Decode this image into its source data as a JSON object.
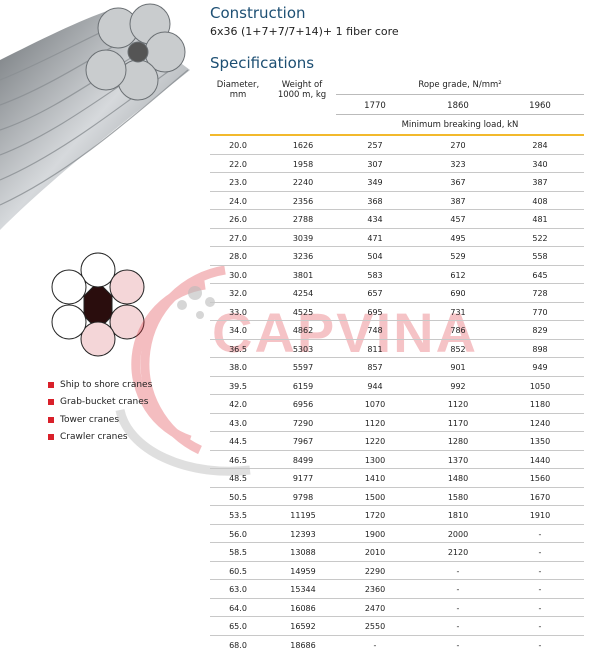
{
  "construction": {
    "title": "Construction",
    "text": "6x36 (1+7+7/7+14)+ 1 fiber core"
  },
  "specifications": {
    "title": "Specifications"
  },
  "table": {
    "headers": {
      "diameter": "Diameter, mm",
      "weight": "Weight of 1000 m, kg",
      "rope_grade": "Rope grade, N/mm²",
      "grades": [
        "1770",
        "1860",
        "1960"
      ],
      "min_breaking": "Minimum breaking load, kN"
    },
    "rows": [
      [
        "20.0",
        "1626",
        "257",
        "270",
        "284"
      ],
      [
        "22.0",
        "1958",
        "307",
        "323",
        "340"
      ],
      [
        "23.0",
        "2240",
        "349",
        "367",
        "387"
      ],
      [
        "24.0",
        "2356",
        "368",
        "387",
        "408"
      ],
      [
        "26.0",
        "2788",
        "434",
        "457",
        "481"
      ],
      [
        "27.0",
        "3039",
        "471",
        "495",
        "522"
      ],
      [
        "28.0",
        "3236",
        "504",
        "529",
        "558"
      ],
      [
        "30.0",
        "3801",
        "583",
        "612",
        "645"
      ],
      [
        "32.0",
        "4254",
        "657",
        "690",
        "728"
      ],
      [
        "33.0",
        "4525",
        "695",
        "731",
        "770"
      ],
      [
        "34.0",
        "4862",
        "748",
        "786",
        "829"
      ],
      [
        "36.5",
        "5303",
        "811",
        "852",
        "898"
      ],
      [
        "38.0",
        "5597",
        "857",
        "901",
        "949"
      ],
      [
        "39.5",
        "6159",
        "944",
        "992",
        "1050"
      ],
      [
        "42.0",
        "6956",
        "1070",
        "1120",
        "1180"
      ],
      [
        "43.0",
        "7290",
        "1120",
        "1170",
        "1240"
      ],
      [
        "44.5",
        "7967",
        "1220",
        "1280",
        "1350"
      ],
      [
        "46.5",
        "8499",
        "1300",
        "1370",
        "1440"
      ],
      [
        "48.5",
        "9177",
        "1410",
        "1480",
        "1560"
      ],
      [
        "50.5",
        "9798",
        "1500",
        "1580",
        "1670"
      ],
      [
        "53.5",
        "11195",
        "1720",
        "1810",
        "1910"
      ],
      [
        "56.0",
        "12393",
        "1900",
        "2000",
        "-"
      ],
      [
        "58.5",
        "13088",
        "2010",
        "2120",
        "-"
      ],
      [
        "60.5",
        "14959",
        "2290",
        "-",
        "-"
      ],
      [
        "63.0",
        "15344",
        "2360",
        "-",
        "-"
      ],
      [
        "64.0",
        "16086",
        "2470",
        "-",
        "-"
      ],
      [
        "65.0",
        "16592",
        "2550",
        "-",
        "-"
      ],
      [
        "68.0",
        "18686",
        "-",
        "-",
        "-"
      ]
    ]
  },
  "applications": [
    "Ship to shore cranes",
    "Grab-bucket cranes",
    "Tower cranes",
    "Crawler cranes"
  ],
  "watermark": "CAPVINA",
  "colors": {
    "title": "#1d4f73",
    "accent_line": "#f2b92c",
    "bullet": "#d9202a",
    "watermark": "#dc2832"
  }
}
